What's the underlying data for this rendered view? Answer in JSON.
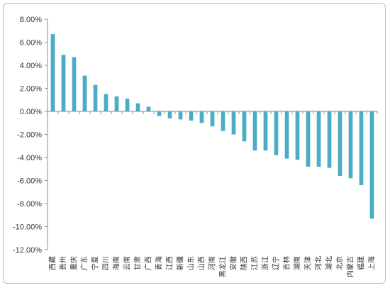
{
  "chart_data": {
    "type": "bar",
    "title": "",
    "xlabel": "",
    "ylabel": "",
    "ylim": [
      -12,
      8
    ],
    "ytick_step": 2,
    "grid": false,
    "legend": "none",
    "bar_color": "#4bacc6",
    "categories": [
      "西藏",
      "贵州",
      "重庆",
      "广东",
      "宁夏",
      "四川",
      "海南",
      "云南",
      "甘肃",
      "广西",
      "青海",
      "江西",
      "新疆",
      "山东",
      "山西",
      "河南",
      "黑龙江",
      "安徽",
      "陕西",
      "江苏",
      "浙江",
      "辽宁",
      "吉林",
      "湖南",
      "天津",
      "河北",
      "湖北",
      "北京",
      "内蒙古",
      "福建",
      "上海"
    ],
    "values": [
      6.7,
      4.9,
      4.7,
      3.1,
      2.3,
      1.5,
      1.3,
      1.1,
      0.7,
      0.4,
      -0.4,
      -0.6,
      -0.7,
      -0.8,
      -1.0,
      -1.3,
      -1.7,
      -2.0,
      -2.6,
      -3.4,
      -3.4,
      -3.8,
      -4.1,
      -4.2,
      -4.8,
      -4.8,
      -4.9,
      -5.6,
      -5.8,
      -6.4,
      -9.3
    ],
    "yticks": [
      "8.00%",
      "6.00%",
      "4.00%",
      "2.00%",
      "0.00%",
      "-2.00%",
      "-4.00%",
      "-6.00%",
      "-8.00%",
      "-10.00%",
      "-12.00%"
    ]
  }
}
